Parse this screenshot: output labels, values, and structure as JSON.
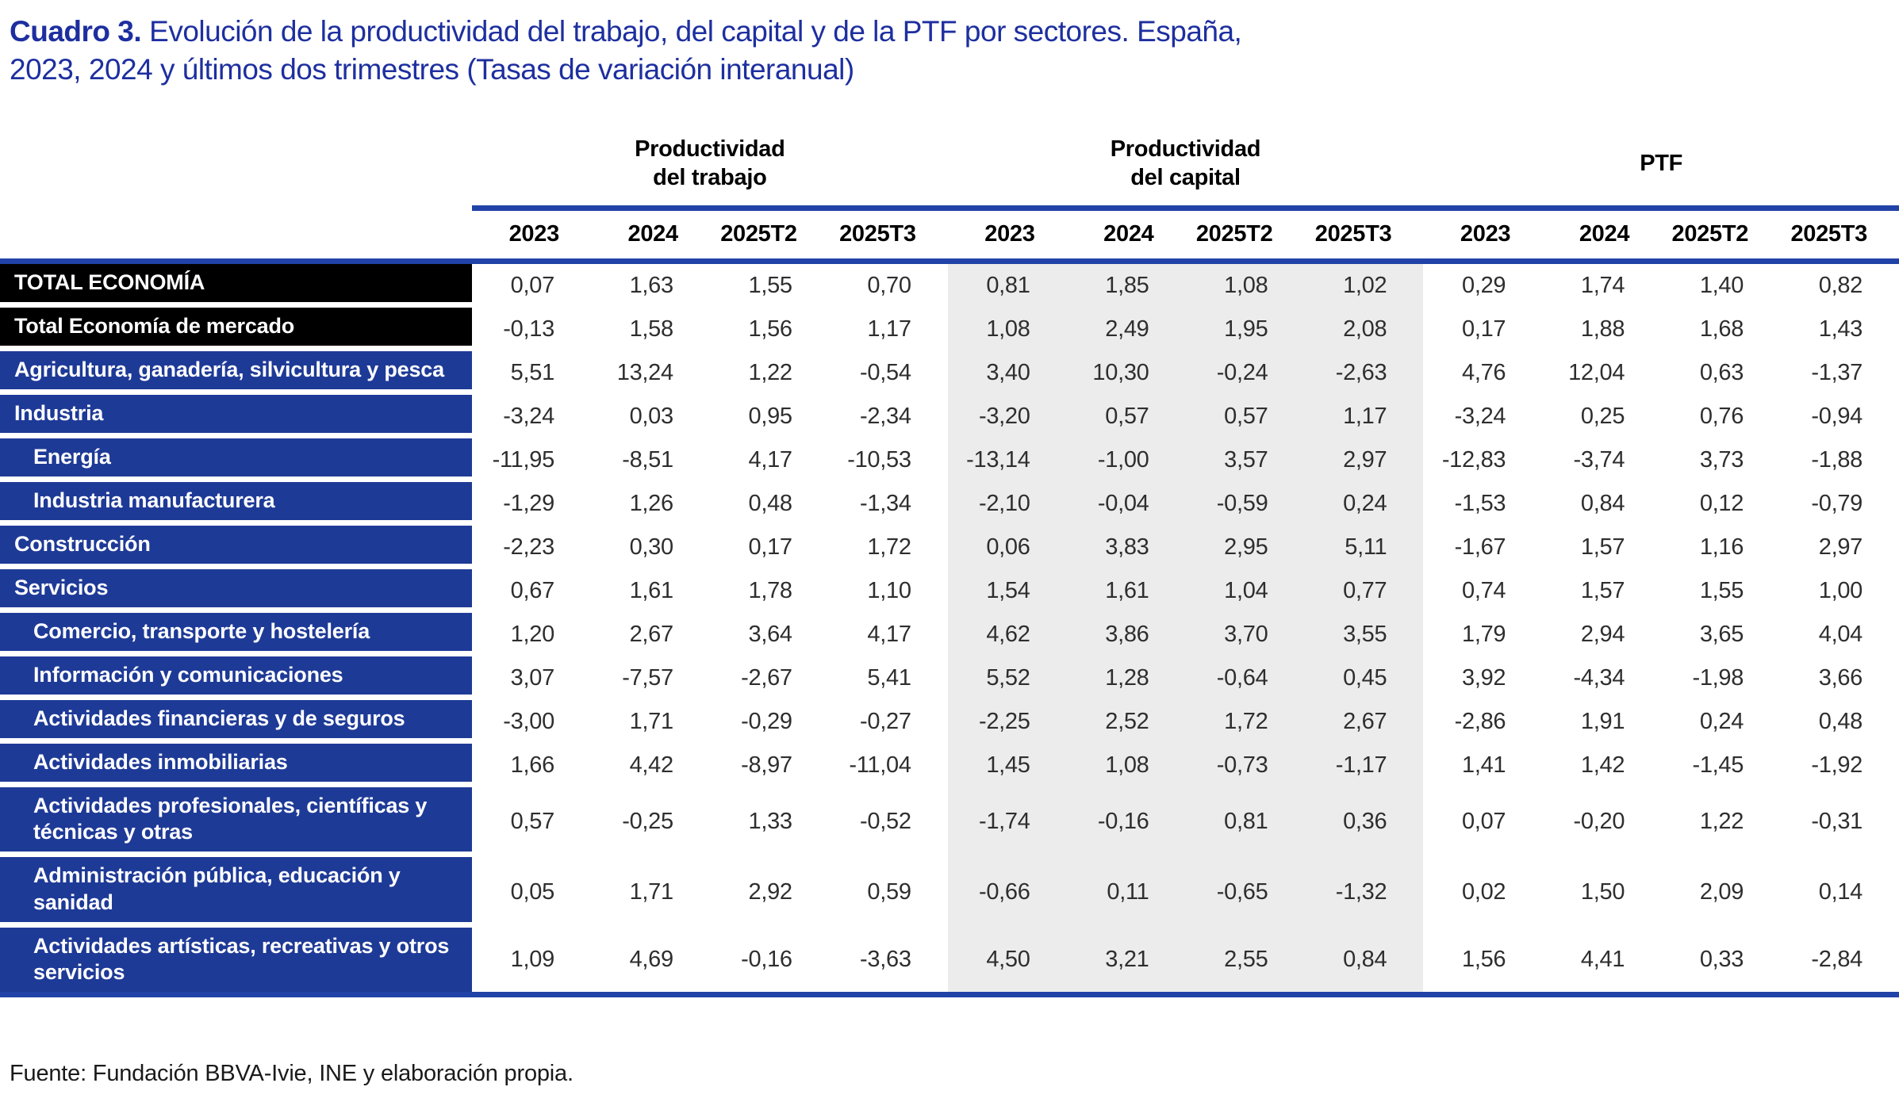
{
  "title": {
    "prefix": "Cuadro 3.",
    "text": "Evolución de la productividad del trabajo, del capital y de la PTF por sectores. España, 2023, 2024 y últimos dos trimestres (Tasas de variación interanual)"
  },
  "footer": {
    "source": "Fuente: Fundación BBVA-Ivie, INE y elaboración propia."
  },
  "colors": {
    "label_blue": "#1e3a97",
    "label_black": "#000000",
    "rule_blue": "#2143a8",
    "band_gray": "#ececec",
    "title_blue": "#1d2f9f"
  },
  "chart_data": {
    "type": "table",
    "title": "Cuadro 3. Evolución de la productividad del trabajo, del capital y de la PTF por sectores. España, 2023, 2024 y últimos dos trimestres (Tasas de variación interanual)",
    "column_groups": [
      "Productividad del trabajo",
      "Productividad del capital",
      "PTF"
    ],
    "columns": [
      "2023",
      "2024",
      "2025T2",
      "2025T3"
    ],
    "rows": [
      {
        "label": "TOTAL ECONOMÍA",
        "style": "black",
        "indent": 0,
        "productividad_trabajo": [
          "0,07",
          "1,63",
          "1,55",
          "0,70"
        ],
        "productividad_capital": [
          "0,81",
          "1,85",
          "1,08",
          "1,02"
        ],
        "ptf": [
          "0,29",
          "1,74",
          "1,40",
          "0,82"
        ]
      },
      {
        "label": "Total Economía de mercado",
        "style": "black",
        "indent": 0,
        "productividad_trabajo": [
          "-0,13",
          "1,58",
          "1,56",
          "1,17"
        ],
        "productividad_capital": [
          "1,08",
          "2,49",
          "1,95",
          "2,08"
        ],
        "ptf": [
          "0,17",
          "1,88",
          "1,68",
          "1,43"
        ]
      },
      {
        "label": "Agricultura, ganadería, silvicultura y pesca",
        "style": "blue",
        "indent": 0,
        "productividad_trabajo": [
          "5,51",
          "13,24",
          "1,22",
          "-0,54"
        ],
        "productividad_capital": [
          "3,40",
          "10,30",
          "-0,24",
          "-2,63"
        ],
        "ptf": [
          "4,76",
          "12,04",
          "0,63",
          "-1,37"
        ]
      },
      {
        "label": "Industria",
        "style": "blue",
        "indent": 0,
        "productividad_trabajo": [
          "-3,24",
          "0,03",
          "0,95",
          "-2,34"
        ],
        "productividad_capital": [
          "-3,20",
          "0,57",
          "0,57",
          "1,17"
        ],
        "ptf": [
          "-3,24",
          "0,25",
          "0,76",
          "-0,94"
        ]
      },
      {
        "label": "Energía",
        "style": "blue",
        "indent": 1,
        "productividad_trabajo": [
          "-11,95",
          "-8,51",
          "4,17",
          "-10,53"
        ],
        "productividad_capital": [
          "-13,14",
          "-1,00",
          "3,57",
          "2,97"
        ],
        "ptf": [
          "-12,83",
          "-3,74",
          "3,73",
          "-1,88"
        ]
      },
      {
        "label": "Industria manufacturera",
        "style": "blue",
        "indent": 1,
        "productividad_trabajo": [
          "-1,29",
          "1,26",
          "0,48",
          "-1,34"
        ],
        "productividad_capital": [
          "-2,10",
          "-0,04",
          "-0,59",
          "0,24"
        ],
        "ptf": [
          "-1,53",
          "0,84",
          "0,12",
          "-0,79"
        ]
      },
      {
        "label": "Construcción",
        "style": "blue",
        "indent": 0,
        "productividad_trabajo": [
          "-2,23",
          "0,30",
          "0,17",
          "1,72"
        ],
        "productividad_capital": [
          "0,06",
          "3,83",
          "2,95",
          "5,11"
        ],
        "ptf": [
          "-1,67",
          "1,57",
          "1,16",
          "2,97"
        ]
      },
      {
        "label": "Servicios",
        "style": "blue",
        "indent": 0,
        "productividad_trabajo": [
          "0,67",
          "1,61",
          "1,78",
          "1,10"
        ],
        "productividad_capital": [
          "1,54",
          "1,61",
          "1,04",
          "0,77"
        ],
        "ptf": [
          "0,74",
          "1,57",
          "1,55",
          "1,00"
        ]
      },
      {
        "label": "Comercio, transporte y hostelería",
        "style": "blue",
        "indent": 1,
        "productividad_trabajo": [
          "1,20",
          "2,67",
          "3,64",
          "4,17"
        ],
        "productividad_capital": [
          "4,62",
          "3,86",
          "3,70",
          "3,55"
        ],
        "ptf": [
          "1,79",
          "2,94",
          "3,65",
          "4,04"
        ]
      },
      {
        "label": "Información y comunicaciones",
        "style": "blue",
        "indent": 1,
        "productividad_trabajo": [
          "3,07",
          "-7,57",
          "-2,67",
          "5,41"
        ],
        "productividad_capital": [
          "5,52",
          "1,28",
          "-0,64",
          "0,45"
        ],
        "ptf": [
          "3,92",
          "-4,34",
          "-1,98",
          "3,66"
        ]
      },
      {
        "label": "Actividades financieras y de seguros",
        "style": "blue",
        "indent": 1,
        "productividad_trabajo": [
          "-3,00",
          "1,71",
          "-0,29",
          "-0,27"
        ],
        "productividad_capital": [
          "-2,25",
          "2,52",
          "1,72",
          "2,67"
        ],
        "ptf": [
          "-2,86",
          "1,91",
          "0,24",
          "0,48"
        ]
      },
      {
        "label": "Actividades inmobiliarias",
        "style": "blue",
        "indent": 1,
        "productividad_trabajo": [
          "1,66",
          "4,42",
          "-8,97",
          "-11,04"
        ],
        "productividad_capital": [
          "1,45",
          "1,08",
          "-0,73",
          "-1,17"
        ],
        "ptf": [
          "1,41",
          "1,42",
          "-1,45",
          "-1,92"
        ]
      },
      {
        "label": "Actividades profesionales, científicas y técnicas y otras",
        "style": "blue",
        "indent": 1,
        "productividad_trabajo": [
          "0,57",
          "-0,25",
          "1,33",
          "-0,52"
        ],
        "productividad_capital": [
          "-1,74",
          "-0,16",
          "0,81",
          "0,36"
        ],
        "ptf": [
          "0,07",
          "-0,20",
          "1,22",
          "-0,31"
        ]
      },
      {
        "label": "Administración pública, educación y sanidad",
        "style": "blue",
        "indent": 1,
        "productividad_trabajo": [
          "0,05",
          "1,71",
          "2,92",
          "0,59"
        ],
        "productividad_capital": [
          "-0,66",
          "0,11",
          "-0,65",
          "-1,32"
        ],
        "ptf": [
          "0,02",
          "1,50",
          "2,09",
          "0,14"
        ]
      },
      {
        "label": "Actividades artísticas, recreativas y otros servicios",
        "style": "blue",
        "indent": 1,
        "productividad_trabajo": [
          "1,09",
          "4,69",
          "-0,16",
          "-3,63"
        ],
        "productividad_capital": [
          "4,50",
          "3,21",
          "2,55",
          "0,84"
        ],
        "ptf": [
          "1,56",
          "4,41",
          "0,33",
          "-2,84"
        ]
      }
    ]
  }
}
